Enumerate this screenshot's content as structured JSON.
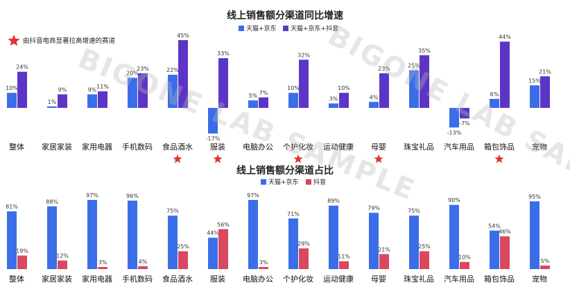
{
  "colors": {
    "blue": "#3a6ee8",
    "purple": "#5d35c6",
    "red": "#d9485e",
    "star": "#e0352b"
  },
  "watermark": "BIGONE LAB SAMPLE",
  "star_icon": "star-icon",
  "chart_data": [
    {
      "type": "bar",
      "title": "线上销售额分渠道同比增速",
      "note": "由抖音电商显著拉高增速的赛道",
      "categories": [
        "整体",
        "家居家装",
        "家用电器",
        "手机数码",
        "食品酒水",
        "服装",
        "电脑办公",
        "个护化妆",
        "运动健康",
        "母婴",
        "珠宝礼品",
        "汽车用品",
        "箱包饰品",
        "宠物"
      ],
      "series": [
        {
          "name": "天猫+京东",
          "values": [
            10,
            1,
            9,
            20,
            22,
            -17,
            5,
            10,
            3,
            4,
            25,
            -13,
            6,
            15
          ]
        },
        {
          "name": "天猫+京东+抖音",
          "values": [
            24,
            9,
            11,
            23,
            45,
            33,
            7,
            32,
            10,
            23,
            35,
            -7,
            44,
            21
          ]
        }
      ],
      "value_labels": {
        "series0": [
          "10%",
          "1%",
          "9%",
          "20%",
          "22%",
          "-17%",
          "5%",
          "10%",
          "3%",
          "4%",
          "25%",
          "-13%",
          "6%",
          "15%"
        ],
        "series1": [
          "24%",
          "9%",
          "11%",
          "23%",
          "45%",
          "33%",
          "7%",
          "32%",
          "10%",
          "23%",
          "35%",
          "-7%",
          "44%",
          "21%"
        ]
      },
      "starred": [
        "食品酒水",
        "服装",
        "个护化妆",
        "母婴",
        "箱包饰品"
      ],
      "ylim": [
        -20,
        48
      ],
      "legend_position": "top-center",
      "grid": false
    },
    {
      "type": "bar",
      "title": "线上销售额分渠道占比",
      "categories": [
        "整体",
        "家居家装",
        "家用电器",
        "手机数码",
        "食品酒水",
        "服装",
        "电脑办公",
        "个护化妆",
        "运动健康",
        "母婴",
        "珠宝礼品",
        "汽车用品",
        "箱包饰品",
        "宠物"
      ],
      "series": [
        {
          "name": "天猫+京东",
          "values": [
            81,
            88,
            97,
            96,
            75,
            44,
            97,
            71,
            89,
            79,
            75,
            90,
            54,
            95
          ]
        },
        {
          "name": "抖音",
          "values": [
            19,
            12,
            3,
            4,
            25,
            56,
            3,
            29,
            11,
            21,
            25,
            10,
            46,
            5
          ]
        }
      ],
      "value_labels": {
        "series0": [
          "81%",
          "88%",
          "97%",
          "96%",
          "75%",
          "44%",
          "97%",
          "71%",
          "89%",
          "79%",
          "75%",
          "90%",
          "54%",
          "95%"
        ],
        "series1": [
          "19%",
          "12%",
          "3%",
          "4%",
          "25%",
          "56%",
          "3%",
          "29%",
          "11%",
          "21%",
          "25%",
          "10%",
          "46%",
          "5%"
        ]
      },
      "ylim": [
        0,
        100
      ],
      "legend_position": "top-center",
      "grid": false
    }
  ]
}
